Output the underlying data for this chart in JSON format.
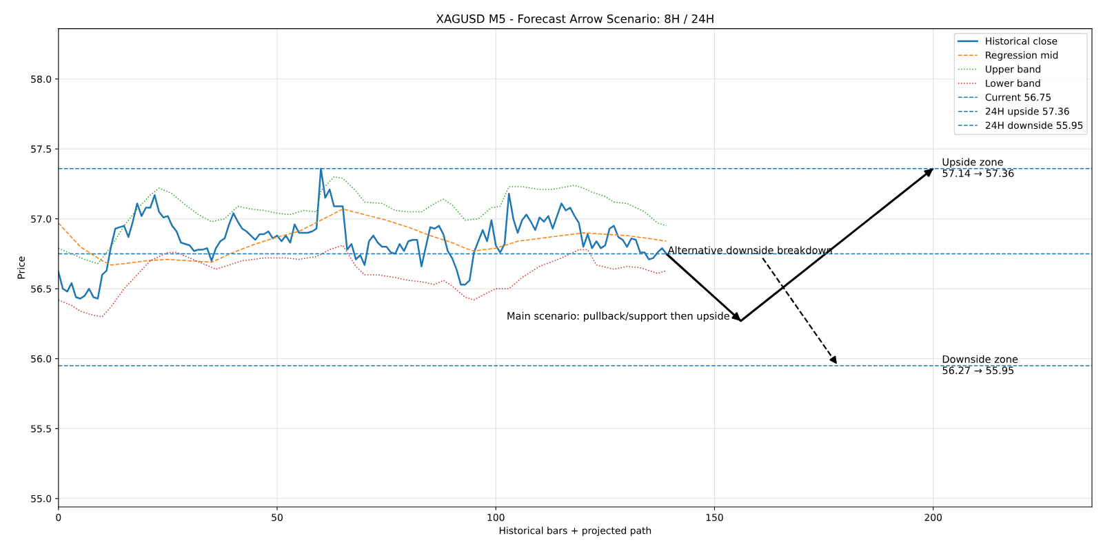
{
  "chart_data": {
    "type": "line",
    "title": "XAGUSD M5 - Forecast Arrow Scenario: 8H / 24H",
    "xlabel": "Historical bars + projected path",
    "ylabel": "Price",
    "xlim": [
      0,
      236.3
    ],
    "ylim": [
      54.94,
      58.36
    ],
    "xticks": [
      0,
      50,
      100,
      150,
      200
    ],
    "yticks": [
      {
        "value": 55,
        "label": "55.0"
      },
      {
        "value": 55.5,
        "label": "55.5"
      },
      {
        "value": 56,
        "label": "56.0"
      },
      {
        "value": 56.5,
        "label": "56.5"
      },
      {
        "value": 57,
        "label": "57.0"
      },
      {
        "value": 57.5,
        "label": "57.5"
      },
      {
        "value": 58,
        "label": "58.0"
      }
    ],
    "grid": true,
    "legend": "top right",
    "series": [
      {
        "name": "Historical close",
        "color": "#1f77b4",
        "line_style": "solid",
        "x": [
          0,
          1,
          2,
          3,
          4,
          5,
          6,
          7,
          8,
          9,
          10,
          11,
          12,
          13,
          14,
          15,
          16,
          17,
          18,
          19,
          20,
          21,
          22,
          23,
          24,
          25,
          26,
          27,
          28,
          29,
          30,
          31,
          32,
          33,
          34,
          35,
          36,
          37,
          38,
          39,
          40,
          41,
          42,
          43,
          44,
          45,
          46,
          47,
          48,
          49,
          50,
          51,
          52,
          53,
          54,
          55,
          56,
          57,
          58,
          59,
          60,
          61,
          62,
          63,
          64,
          65,
          66,
          67,
          68,
          69,
          70,
          71,
          72,
          73,
          74,
          75,
          76,
          77,
          78,
          79,
          80,
          81,
          82,
          83,
          84,
          85,
          86,
          87,
          88,
          89,
          90,
          91,
          92,
          93,
          94,
          95,
          96,
          97,
          98,
          99,
          100,
          101,
          102,
          103,
          104,
          105,
          106,
          107,
          108,
          109,
          110,
          111,
          112,
          113,
          114,
          115,
          116,
          117,
          118,
          119,
          120,
          121,
          122,
          123,
          124,
          125,
          126,
          127,
          128,
          129,
          130,
          131,
          132,
          133,
          134,
          135,
          136,
          137,
          138,
          139
        ],
        "values": [
          56.62,
          56.5,
          56.48,
          56.54,
          56.44,
          56.43,
          56.45,
          56.5,
          56.44,
          56.43,
          56.6,
          56.63,
          56.8,
          56.93,
          56.94,
          56.95,
          56.87,
          56.98,
          57.11,
          57.02,
          57.08,
          57.08,
          57.17,
          57.05,
          57.01,
          57.02,
          56.95,
          56.91,
          56.83,
          56.82,
          56.81,
          56.77,
          56.78,
          56.78,
          56.79,
          56.7,
          56.79,
          56.84,
          56.86,
          56.96,
          57.04,
          56.98,
          56.93,
          56.91,
          56.88,
          56.85,
          56.89,
          56.89,
          56.91,
          56.86,
          56.88,
          56.84,
          56.88,
          56.83,
          56.96,
          56.9,
          56.9,
          56.9,
          56.91,
          56.93,
          57.36,
          57.15,
          57.21,
          57.09,
          57.09,
          57.09,
          56.78,
          56.82,
          56.71,
          56.74,
          56.67,
          56.84,
          56.88,
          56.83,
          56.8,
          56.8,
          56.76,
          56.75,
          56.82,
          56.77,
          56.84,
          56.85,
          56.85,
          56.66,
          56.8,
          56.94,
          56.93,
          56.95,
          56.89,
          56.77,
          56.72,
          56.64,
          56.53,
          56.53,
          56.56,
          56.76,
          56.84,
          56.92,
          56.84,
          56.99,
          56.81,
          56.76,
          56.82,
          57.18,
          57.0,
          56.9,
          56.99,
          57.03,
          56.98,
          56.92,
          57.01,
          56.98,
          57.02,
          56.93,
          57.02,
          57.11,
          57.06,
          57.08,
          57.02,
          56.97,
          56.8,
          56.89,
          56.79,
          56.84,
          56.79,
          56.81,
          56.93,
          56.95,
          56.87,
          56.85,
          56.8,
          56.86,
          56.85,
          56.76,
          56.76,
          56.71,
          56.72,
          56.76,
          56.79,
          56.75
        ]
      },
      {
        "name": "Regression mid",
        "color": "#ff7f0e",
        "line_style": "dashed",
        "x": [
          0,
          5,
          10,
          12,
          15,
          20,
          25,
          30,
          35,
          40,
          45,
          50,
          55,
          60,
          65,
          70,
          75,
          80,
          85,
          90,
          93,
          95,
          100,
          105,
          110,
          115,
          120,
          125,
          130,
          135,
          139
        ],
        "values": [
          56.97,
          56.8,
          56.7,
          56.67,
          56.68,
          56.7,
          56.71,
          56.7,
          56.69,
          56.76,
          56.82,
          56.87,
          56.91,
          56.99,
          57.07,
          57.03,
          56.99,
          56.94,
          56.88,
          56.83,
          56.79,
          56.77,
          56.79,
          56.84,
          56.86,
          56.88,
          56.9,
          56.89,
          56.88,
          56.86,
          56.84
        ]
      },
      {
        "name": "Upper band",
        "color": "#2ca02c",
        "line_style": "dotted",
        "x": [
          0,
          3,
          6,
          9,
          12,
          15,
          18,
          21,
          23,
          26,
          29,
          32,
          35,
          38,
          41,
          44,
          47,
          50,
          53,
          56,
          59,
          60,
          63,
          65,
          68,
          70,
          74,
          77,
          80,
          83,
          86,
          88,
          90,
          93,
          96,
          99,
          101,
          103,
          106,
          110,
          113,
          118,
          120,
          122,
          125,
          127,
          130,
          134,
          137,
          139
        ],
        "values": [
          56.79,
          56.75,
          56.71,
          56.68,
          56.8,
          56.95,
          57.07,
          57.17,
          57.22,
          57.18,
          57.1,
          57.03,
          56.98,
          57.0,
          57.09,
          57.07,
          57.06,
          57.04,
          57.03,
          57.06,
          57.05,
          57.2,
          57.3,
          57.29,
          57.2,
          57.12,
          57.11,
          57.06,
          57.05,
          57.05,
          57.11,
          57.14,
          57.1,
          56.99,
          57.0,
          57.08,
          57.09,
          57.23,
          57.23,
          57.21,
          57.21,
          57.24,
          57.22,
          57.19,
          57.16,
          57.12,
          57.11,
          57.05,
          56.97,
          56.95
        ]
      },
      {
        "name": "Lower band",
        "color": "#d62728",
        "line_style": "dotted",
        "x": [
          0,
          3,
          5,
          8,
          10,
          12,
          15,
          18,
          21,
          25,
          27,
          30,
          33,
          36,
          39,
          42,
          47,
          52,
          55,
          59,
          62,
          65,
          68,
          70,
          73,
          77,
          80,
          83,
          86,
          88,
          90,
          93,
          95,
          98,
          100,
          103,
          106,
          110,
          115,
          119,
          121,
          123,
          127,
          130,
          133,
          137,
          139
        ],
        "values": [
          56.42,
          56.38,
          56.34,
          56.31,
          56.3,
          56.37,
          56.5,
          56.6,
          56.7,
          56.76,
          56.76,
          56.72,
          56.68,
          56.64,
          56.67,
          56.7,
          56.72,
          56.72,
          56.71,
          56.73,
          56.78,
          56.81,
          56.66,
          56.6,
          56.6,
          56.58,
          56.56,
          56.55,
          56.53,
          56.56,
          56.52,
          56.44,
          56.42,
          56.47,
          56.5,
          56.5,
          56.58,
          56.66,
          56.72,
          56.78,
          56.78,
          56.67,
          56.64,
          56.66,
          56.65,
          56.61,
          56.63
        ]
      },
      {
        "type": "line",
        "color": "#000000",
        "line_style": "solid",
        "x": [
          139,
          156,
          200
        ],
        "values": [
          56.75,
          56.27,
          57.36
        ]
      },
      {
        "type": "line",
        "color": "#000000",
        "line_style": "dashed",
        "x": [
          161,
          178
        ],
        "values": [
          56.72,
          55.96
        ]
      }
    ],
    "ref_lines": [
      {
        "axis": "y",
        "value": 56.75,
        "label": "Current 56.75",
        "color": "#1f77b4",
        "line_style": "dashed"
      },
      {
        "axis": "y",
        "value": 57.36,
        "label": "24H upside 57.36",
        "color": "#1f77b4",
        "line_style": "dashed"
      },
      {
        "axis": "y",
        "value": 55.95,
        "label": "24H downside 55.95",
        "color": "#1f77b4",
        "line_style": "dashed"
      }
    ],
    "annotations": [
      {
        "text": "Alternative downside breakdown",
        "x": 139.3,
        "y": 56.77
      },
      {
        "text": "Main scenario: pullback/support then upside",
        "x": 153.5,
        "y": 56.3
      },
      {
        "text": "Upside zone\n57.14 → 57.36",
        "x": 202,
        "y": 57.36
      },
      {
        "text": "Downside zone\n56.27 → 55.95",
        "x": 202,
        "y": 55.95
      }
    ]
  }
}
